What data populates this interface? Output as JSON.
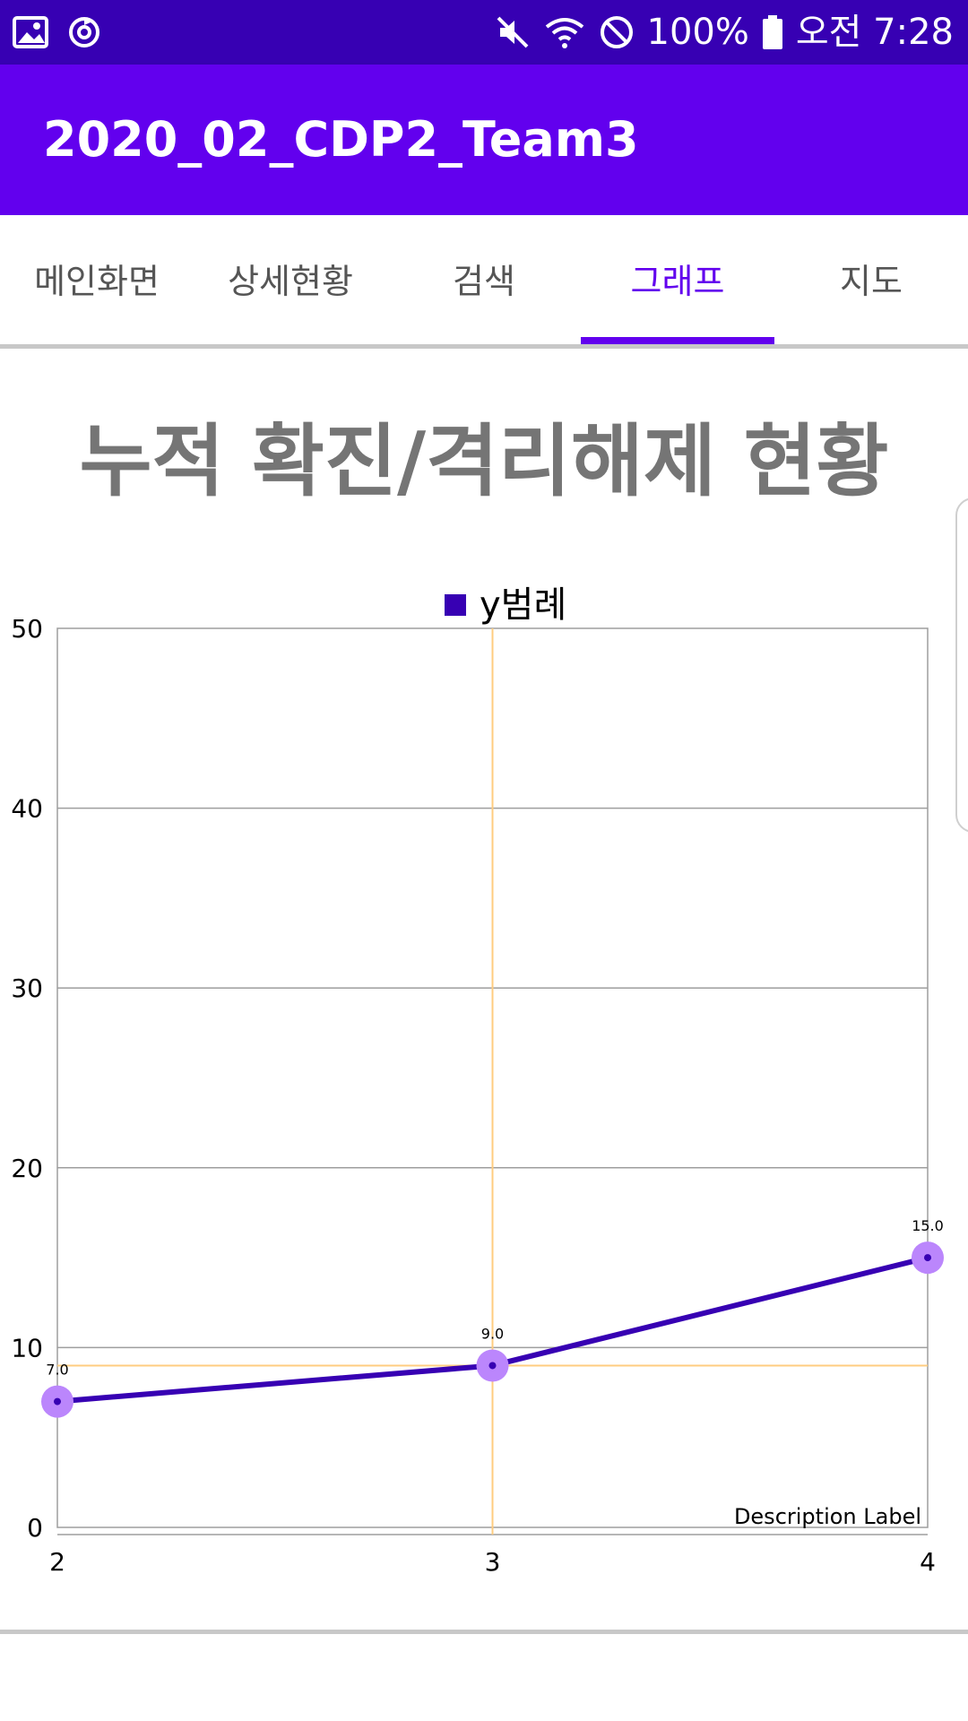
{
  "status_bar": {
    "battery": "100%",
    "time": "오전 7:28",
    "icons": [
      "image-icon",
      "sync-icon",
      "mute-icon",
      "wifi-icon",
      "no-disturb-icon",
      "battery-icon"
    ]
  },
  "app_bar": {
    "title": "2020_02_CDP2_Team3"
  },
  "tabs": [
    {
      "label": "메인화면",
      "active": false
    },
    {
      "label": "상세현황",
      "active": false
    },
    {
      "label": "검색",
      "active": false
    },
    {
      "label": "그래프",
      "active": true
    },
    {
      "label": "지도",
      "active": false
    }
  ],
  "section_title": "누적 확진/격리해제 현황",
  "next_section_title": "",
  "colors": {
    "status_bar": "#3700b3",
    "app_bar": "#6200ee",
    "series_line": "#3700b3",
    "point": "#bb86fc",
    "highlight": "#ffcc80"
  },
  "chart_data": {
    "type": "line",
    "legend": {
      "label": "y범례",
      "position": "top-center"
    },
    "x": [
      2,
      3,
      4
    ],
    "series": [
      {
        "name": "y범례",
        "values": [
          7.0,
          9.0,
          15.0
        ],
        "value_labels": [
          "7.0",
          "9.0",
          "15.0"
        ]
      }
    ],
    "xlim": [
      2,
      4
    ],
    "ylim": [
      0,
      50
    ],
    "x_ticks": [
      "2",
      "3",
      "4"
    ],
    "y_ticks": [
      "0",
      "10",
      "20",
      "30",
      "40",
      "50"
    ],
    "grid": true,
    "highlight": {
      "x": 3,
      "y": 9.0
    },
    "description": "Description Label"
  }
}
